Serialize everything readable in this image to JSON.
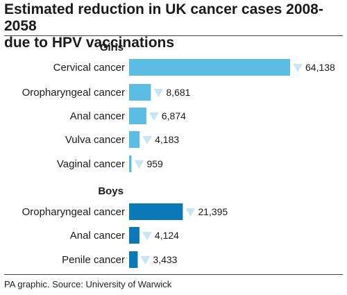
{
  "header": {
    "title_line1": "Estimated reduction in UK cancer cases 2008-2058",
    "title_line2": "due to HPV vaccinations"
  },
  "footer": {
    "source": "PA graphic. Source: University of Warwick"
  },
  "colors": {
    "girls_bar": "#5bbde4",
    "boys_bar": "#0b78b8",
    "marker": "#c5e6f5",
    "rule": "#444444"
  },
  "chart_data": {
    "type": "bar",
    "orientation": "horizontal",
    "title": "Estimated reduction in UK cancer cases 2008-2058 due to HPV vaccinations",
    "xlim": [
      0,
      64138
    ],
    "grid": false,
    "groups": [
      {
        "name": "Girls",
        "categories": [
          "Cervical cancer",
          "Oropharyngeal cancer",
          "Anal cancer",
          "Vulva cancer",
          "Vaginal cancer"
        ],
        "values": [
          64138,
          8681,
          6874,
          4183,
          959
        ],
        "labels": [
          "64,138",
          "8,681",
          "6,874",
          "4,183",
          "959"
        ],
        "color": "#5bbde4"
      },
      {
        "name": "Boys",
        "categories": [
          "Oropharyngeal cancer",
          "Anal cancer",
          "Penile cancer"
        ],
        "values": [
          21395,
          4124,
          3433
        ],
        "labels": [
          "21,395",
          "4,124",
          "3,433"
        ],
        "color": "#0b78b8"
      }
    ]
  }
}
